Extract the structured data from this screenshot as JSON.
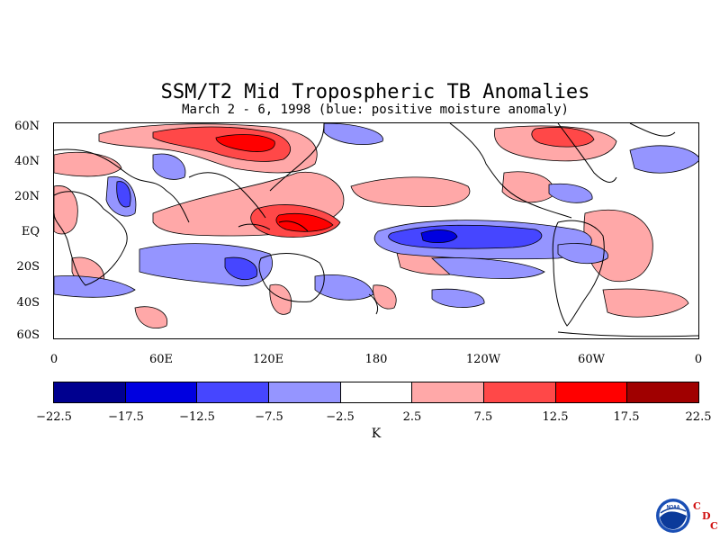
{
  "title": "SSM/T2 Mid Tropospheric TB Anomalies",
  "subtitle": "March 2 - 6, 1998 (blue: positive moisture anomaly)",
  "lat_labels": [
    "60N",
    "40N",
    "20N",
    "EQ",
    "20S",
    "40S",
    "60S"
  ],
  "lon_labels": [
    "0",
    "60E",
    "120E",
    "180",
    "120W",
    "60W",
    "0"
  ],
  "colorbar": {
    "colors": [
      "#00008f",
      "#0000e0",
      "#4646ff",
      "#9595ff",
      "#ffffff",
      "#ffa8a8",
      "#ff4848",
      "#ff0000",
      "#a00000"
    ],
    "labels": [
      "−22.5",
      "−17.5",
      "−12.5",
      "−7.5",
      "−2.5",
      "2.5",
      "7.5",
      "12.5",
      "17.5",
      "22.5"
    ],
    "unit": "K"
  },
  "logo": {
    "icon": "noaa-logo-icon",
    "letters": [
      "C",
      "D",
      "C"
    ],
    "accent": "#d01010"
  }
}
